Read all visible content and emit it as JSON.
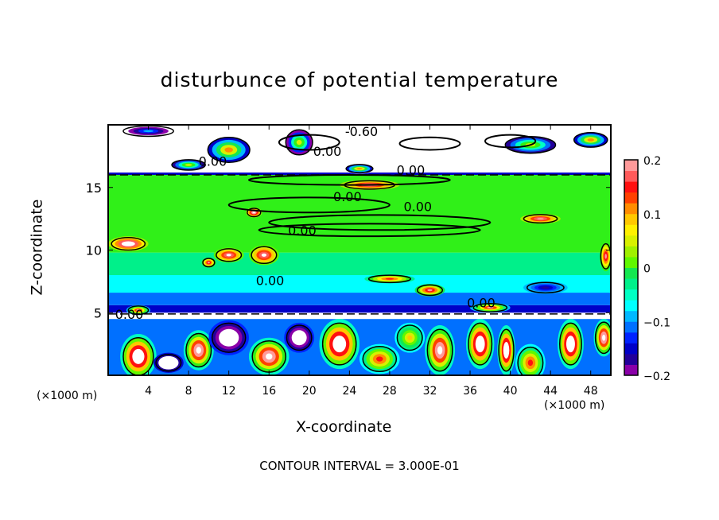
{
  "chart_data": {
    "type": "heatmap",
    "title": "disturbunce of potential temperature",
    "xlabel": "X-coordinate",
    "ylabel": "Z-coordinate",
    "x_units": "(×1000 m)",
    "y_units": "(×1000 m)",
    "xlim": [
      0,
      50
    ],
    "ylim": [
      0,
      20
    ],
    "x_ticks": [
      4,
      8,
      12,
      16,
      20,
      24,
      28,
      32,
      36,
      40,
      44,
      48
    ],
    "y_ticks": [
      5,
      10,
      15
    ],
    "colorbar": {
      "min": -0.2,
      "max": 0.2,
      "step": 0.02,
      "tick_labels": [
        "0.2",
        "0.1",
        "0",
        "−0.1",
        "−0.2"
      ],
      "tick_values": [
        0.2,
        0.1,
        0,
        -0.1,
        -0.2
      ],
      "colors": [
        "#8a00a8",
        "#22009a",
        "#0000c8",
        "#0022ff",
        "#0070ff",
        "#00b8ff",
        "#00ffff",
        "#00ffc4",
        "#00f08a",
        "#14e850",
        "#30f018",
        "#60f800",
        "#a0f000",
        "#d8f000",
        "#fff000",
        "#ffc800",
        "#ff8c00",
        "#ff4000",
        "#ff1010",
        "#ff5a5a",
        "#ff9a9a"
      ]
    },
    "layers": [
      {
        "z": [
          0,
          4.5
        ],
        "value": -0.12
      },
      {
        "z": [
          4.5,
          5.0
        ],
        "value": -0.3
      },
      {
        "z": [
          5.0,
          5.6
        ],
        "value": -0.16
      },
      {
        "z": [
          5.6,
          6.6
        ],
        "value": -0.12
      },
      {
        "z": [
          6.6,
          8.0
        ],
        "value": -0.07
      },
      {
        "z": [
          8.0,
          9.8
        ],
        "value": -0.03
      },
      {
        "z": [
          9.8,
          16.0
        ],
        "value": -0.005
      },
      {
        "z": [
          16.0,
          16.2
        ],
        "value": -0.16
      },
      {
        "z": [
          16.2,
          20
        ],
        "value": -0.3
      }
    ],
    "anomalies": [
      [
        3,
        1.5,
        1.8,
        1.8,
        0.3
      ],
      [
        6,
        1,
        1.5,
        0.8,
        -0.3
      ],
      [
        9,
        2,
        1.5,
        1.6,
        0.25
      ],
      [
        12,
        3,
        2,
        1.4,
        -0.25
      ],
      [
        16,
        1.5,
        2,
        1.5,
        0.25
      ],
      [
        19,
        3,
        1.5,
        1.2,
        -0.25
      ],
      [
        23,
        2.5,
        2,
        2,
        0.3
      ],
      [
        27,
        1.3,
        2,
        1.2,
        0.15
      ],
      [
        30,
        3,
        1.5,
        1.2,
        0.1
      ],
      [
        33,
        2,
        1.5,
        2,
        0.25
      ],
      [
        37,
        2.5,
        1.4,
        2,
        0.3
      ],
      [
        39.6,
        2,
        0.9,
        2,
        0.3
      ],
      [
        42,
        1,
        1.5,
        1.5,
        0.15
      ],
      [
        46,
        2.5,
        1.3,
        2,
        0.3
      ],
      [
        49.3,
        3,
        1,
        1.5,
        0.25
      ],
      [
        2,
        10.5,
        2,
        0.6,
        0.25
      ],
      [
        10,
        9,
        0.7,
        0.4,
        0.2
      ],
      [
        12,
        9.6,
        1.5,
        0.6,
        0.22
      ],
      [
        15.5,
        9.6,
        1.5,
        0.8,
        0.22
      ],
      [
        28,
        7.7,
        2.5,
        0.35,
        0.15
      ],
      [
        32,
        6.8,
        1.5,
        0.5,
        0.2
      ],
      [
        14.5,
        13,
        0.8,
        0.4,
        0.22
      ],
      [
        26,
        15.2,
        3,
        0.4,
        0.2
      ],
      [
        43,
        12.5,
        2,
        0.4,
        0.2
      ],
      [
        3,
        5.2,
        1.2,
        0.4,
        0.2
      ],
      [
        38,
        5.4,
        2,
        0.4,
        0.2
      ],
      [
        43.5,
        7,
        2.2,
        0.5,
        -0.17
      ],
      [
        49.5,
        9.5,
        0.6,
        1.2,
        0.2
      ],
      [
        12,
        18,
        2.5,
        1.2,
        0.12
      ],
      [
        19,
        18.6,
        1.6,
        1.2,
        0.05
      ],
      [
        25,
        16.5,
        1.6,
        0.4,
        0.12
      ],
      [
        42,
        18.4,
        3,
        0.8,
        0.06
      ],
      [
        48,
        18.8,
        2,
        0.7,
        0.12
      ],
      [
        8,
        16.8,
        2,
        0.5,
        0.06
      ],
      [
        4,
        19.5,
        3,
        0.5,
        -0.1
      ]
    ],
    "contours": [
      [
        20,
        13.6,
        8,
        0.6
      ],
      [
        27,
        12.2,
        11,
        0.6
      ],
      [
        26,
        11.6,
        11,
        0.5
      ],
      [
        24,
        15.6,
        10,
        0.4
      ],
      [
        20,
        18.6,
        3,
        0.6
      ],
      [
        32,
        18.5,
        3,
        0.5
      ],
      [
        40,
        18.7,
        2.5,
        0.5
      ]
    ],
    "contour_labels": [
      {
        "text": "-0.60",
        "x": 25.2,
        "z": 19.5
      },
      {
        "text": "0.00",
        "x": 21.8,
        "z": 17.9
      },
      {
        "text": "0.00",
        "x": 10.4,
        "z": 17.1
      },
      {
        "text": "0.00",
        "x": 30.1,
        "z": 16.4
      },
      {
        "text": "0.00",
        "x": 23.8,
        "z": 14.3
      },
      {
        "text": "0.00",
        "x": 30.8,
        "z": 13.5
      },
      {
        "text": "0.00",
        "x": 19.3,
        "z": 11.6
      },
      {
        "text": "0.00",
        "x": 16.1,
        "z": 7.6
      },
      {
        "text": "0.00",
        "x": 2.1,
        "z": 4.9
      },
      {
        "text": "0.00",
        "x": 37.1,
        "z": 5.8
      }
    ],
    "contour_interval": "CONTOUR INTERVAL = 3.000E-01"
  }
}
